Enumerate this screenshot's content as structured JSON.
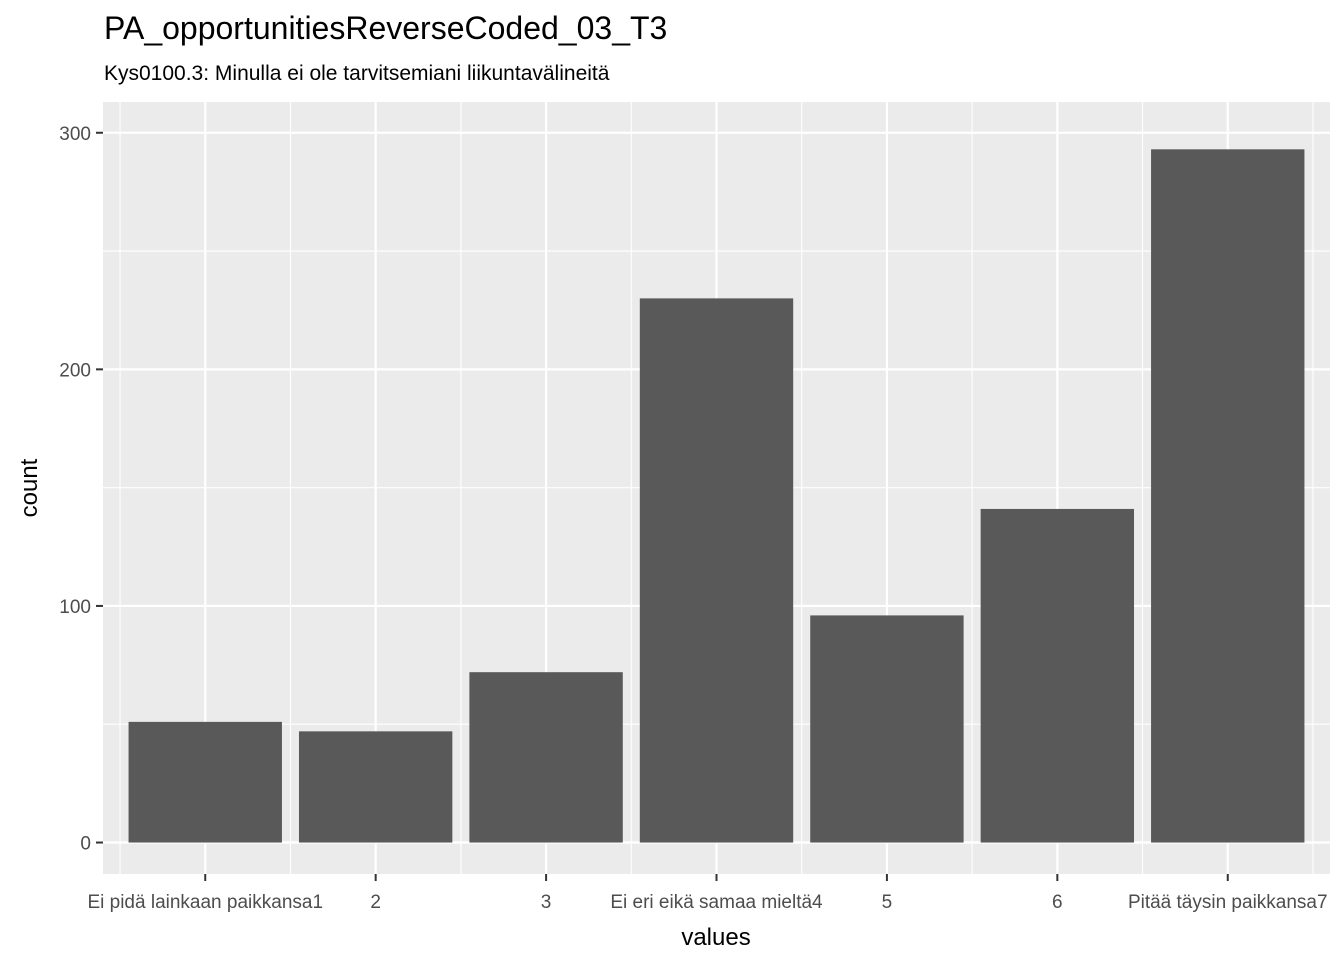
{
  "chart_data": {
    "type": "bar",
    "title": "PA_opportunitiesReverseCoded_03_T3",
    "subtitle": "Kys0100.3: Minulla ei ole tarvitsemiani liikuntavälineitä",
    "xlabel": "values",
    "ylabel": "count",
    "categories": [
      "Ei pidä lainkaan paikkansa1",
      "2",
      "3",
      "Ei eri eikä samaa mieltä4",
      "5",
      "6",
      "Pitää täysin paikkansa7"
    ],
    "values": [
      51,
      47,
      72,
      230,
      96,
      141,
      293
    ],
    "ylim": [
      -13.3,
      313
    ],
    "yticks": [
      0,
      100,
      200,
      300
    ],
    "grid": true,
    "colors": {
      "bar": "#595959",
      "panel": "#ebebeb",
      "grid": "#ffffff"
    }
  }
}
